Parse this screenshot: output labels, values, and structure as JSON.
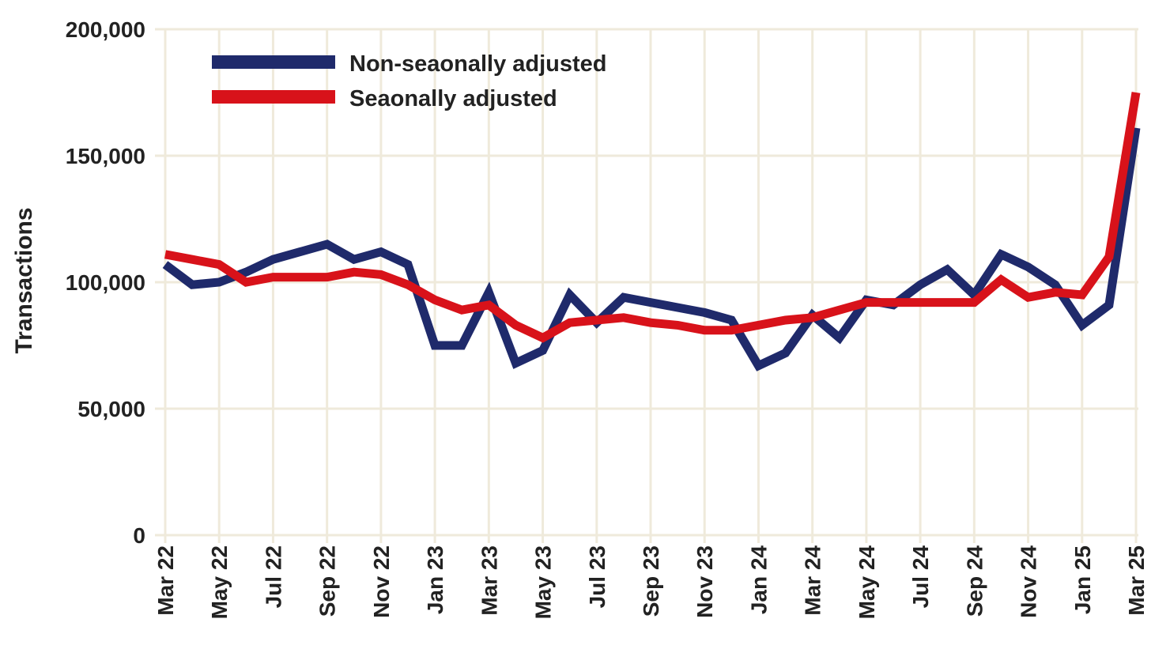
{
  "chart_data": {
    "type": "line",
    "title": "",
    "xlabel": "",
    "ylabel": "Transactions",
    "ylim": [
      0,
      200000
    ],
    "yticks": [
      0,
      50000,
      100000,
      150000,
      200000
    ],
    "ytick_labels": [
      "0",
      "50,000",
      "100,000",
      "150,000",
      "200,000"
    ],
    "grid": true,
    "legend_position": "top-left",
    "x": [
      "Mar 22",
      "Apr 22",
      "May 22",
      "Jun 22",
      "Jul 22",
      "Aug 22",
      "Sep 22",
      "Oct 22",
      "Nov 22",
      "Dec 22",
      "Jan 23",
      "Feb 23",
      "Mar 23",
      "Apr 23",
      "May 23",
      "Jun 23",
      "Jul 23",
      "Aug 23",
      "Sep 23",
      "Oct 23",
      "Nov 23",
      "Dec 23",
      "Jan 24",
      "Feb 24",
      "Mar 24",
      "Apr 24",
      "May 24",
      "Jun 24",
      "Jul 24",
      "Aug 24",
      "Sep 24",
      "Oct 24",
      "Nov 24",
      "Dec 24",
      "Jan 25",
      "Feb 25",
      "Mar 25"
    ],
    "xtick_labels": [
      "Mar 22",
      "May 22",
      "Jul 22",
      "Sep 22",
      "Nov 22",
      "Jan 23",
      "Mar 23",
      "May 23",
      "Jul 23",
      "Sep 23",
      "Nov 23",
      "Jan 24",
      "Mar 24",
      "May 24",
      "Jul 24",
      "Sep 24",
      "Nov 24",
      "Jan 25",
      "Mar 25"
    ],
    "series": [
      {
        "name": "Non-seaonally adjusted",
        "color": "#1f2a6b",
        "values": [
          107000,
          99000,
          100000,
          104000,
          109000,
          112000,
          115000,
          109000,
          112000,
          107000,
          75000,
          75000,
          96000,
          68000,
          73000,
          95000,
          84000,
          94000,
          92000,
          90000,
          88000,
          85000,
          67000,
          72000,
          87000,
          78000,
          93000,
          91000,
          99000,
          105000,
          95000,
          111000,
          106000,
          99000,
          83000,
          91000,
          161000
        ]
      },
      {
        "name": "Seaonally adjusted",
        "color": "#d8121a",
        "values": [
          111000,
          109000,
          107000,
          100000,
          102000,
          102000,
          102000,
          104000,
          103000,
          99000,
          93000,
          89000,
          91000,
          83000,
          78000,
          84000,
          85000,
          86000,
          84000,
          83000,
          81000,
          81000,
          83000,
          85000,
          86000,
          89000,
          92000,
          92000,
          92000,
          92000,
          92000,
          101000,
          94000,
          96000,
          95000,
          110000,
          175000
        ]
      }
    ],
    "grid_color": "#efeadb"
  }
}
